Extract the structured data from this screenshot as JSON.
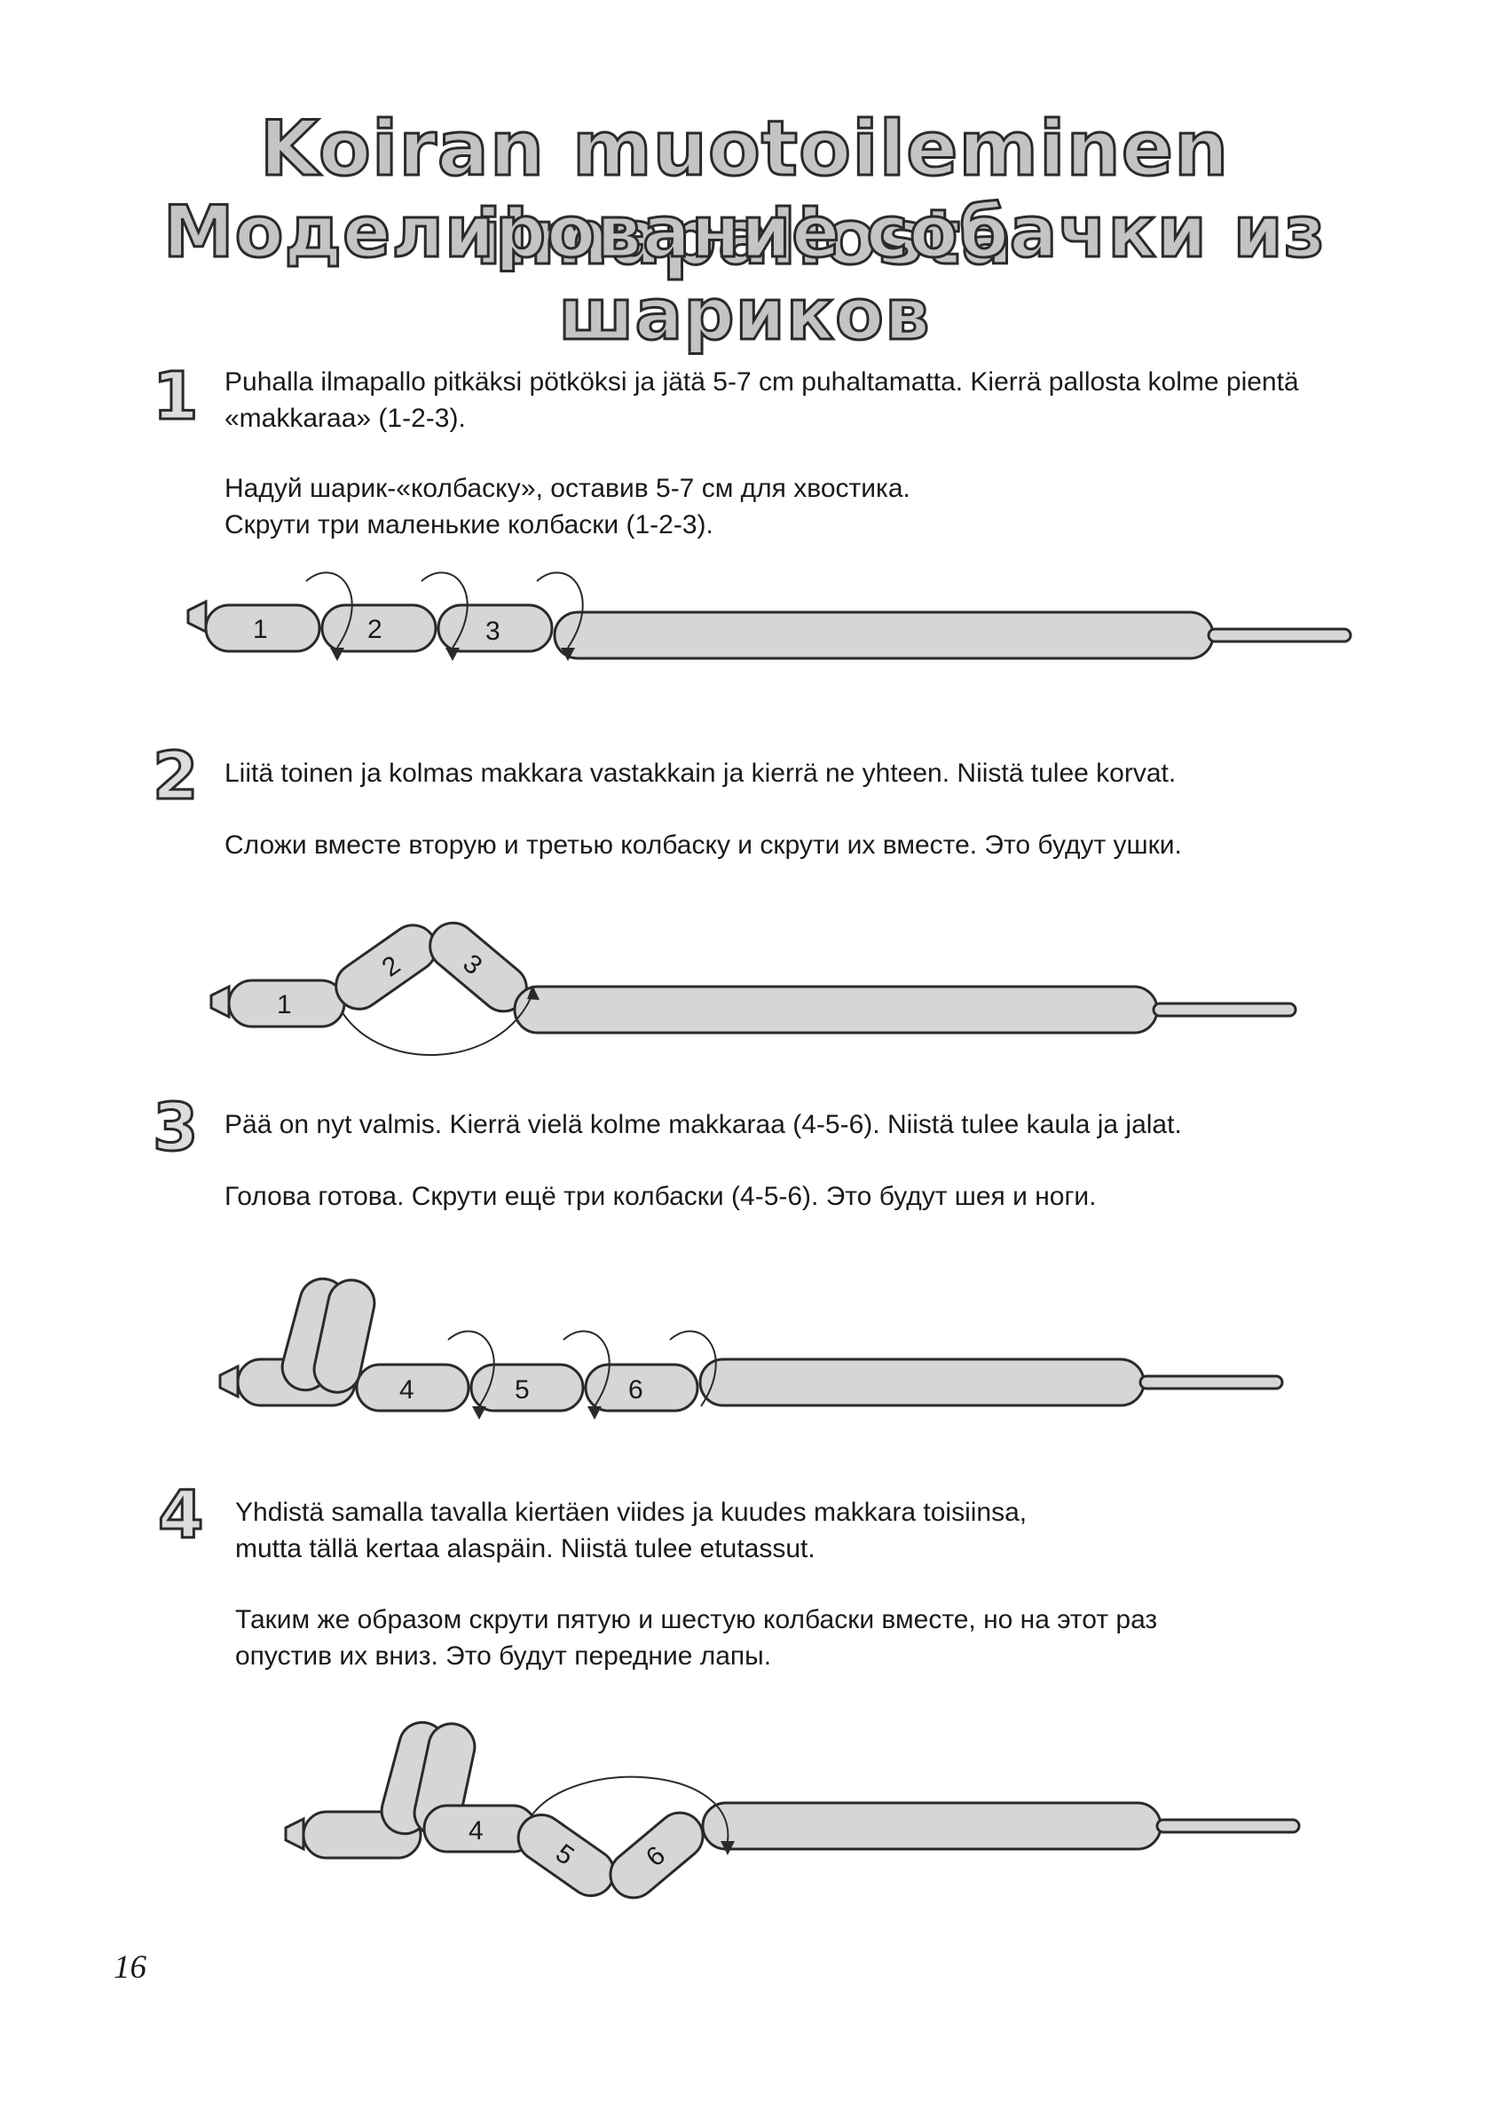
{
  "title": {
    "fi": "Koiran muotoileminen ilmapallosta",
    "ru": "Моделирование собачки из шариков"
  },
  "steps": [
    {
      "number": "1",
      "fi": [
        "Puhalla ilmapallo pitkäksi pötköksi ja jätä 5-7 cm puhaltamatta. Kierrä pallosta kolme pientä",
        "«makkaraa» (1-2-3)."
      ],
      "ru": [
        "Надуй шарик-«колбаску», оставив 5-7 см для хвостика.",
        "Скрути три маленькие колбаски (1-2-3)."
      ],
      "labels": [
        "1",
        "2",
        "3"
      ]
    },
    {
      "number": "2",
      "fi": [
        "Liitä toinen ja kolmas makkara vastakkain ja kierrä ne yhteen. Niistä tulee korvat."
      ],
      "ru": [
        "Сложи вместе вторую и третью колбаску и скрути их вместе. Это будут ушки."
      ],
      "labels": [
        "1",
        "2",
        "3"
      ]
    },
    {
      "number": "3",
      "fi": [
        "Pää on nyt valmis. Kierrä vielä kolme makkaraa (4-5-6). Niistä tulee kaula ja jalat."
      ],
      "ru": [
        "Голова готова. Скрути ещё три колбаски (4-5-6). Это будут шея и ноги."
      ],
      "labels": [
        "4",
        "5",
        "6"
      ]
    },
    {
      "number": "4",
      "fi": [
        "Yhdistä samalla tavalla kiertäen viides ja kuudes makkara toisiinsa,",
        "mutta tällä kertaa alaspäin. Niistä tulee etutassut."
      ],
      "ru": [
        "Таким же образом скрути пятую и шестую колбаски вместе, но на этот раз",
        "опустив их вниз. Это будут передние лапы."
      ],
      "labels": [
        "4",
        "5",
        "6"
      ]
    }
  ],
  "page_number": "16",
  "colors": {
    "balloon_fill": "#d6d6d6",
    "outline": "#2a2a2a",
    "title_fill": "#c4c4c4"
  }
}
